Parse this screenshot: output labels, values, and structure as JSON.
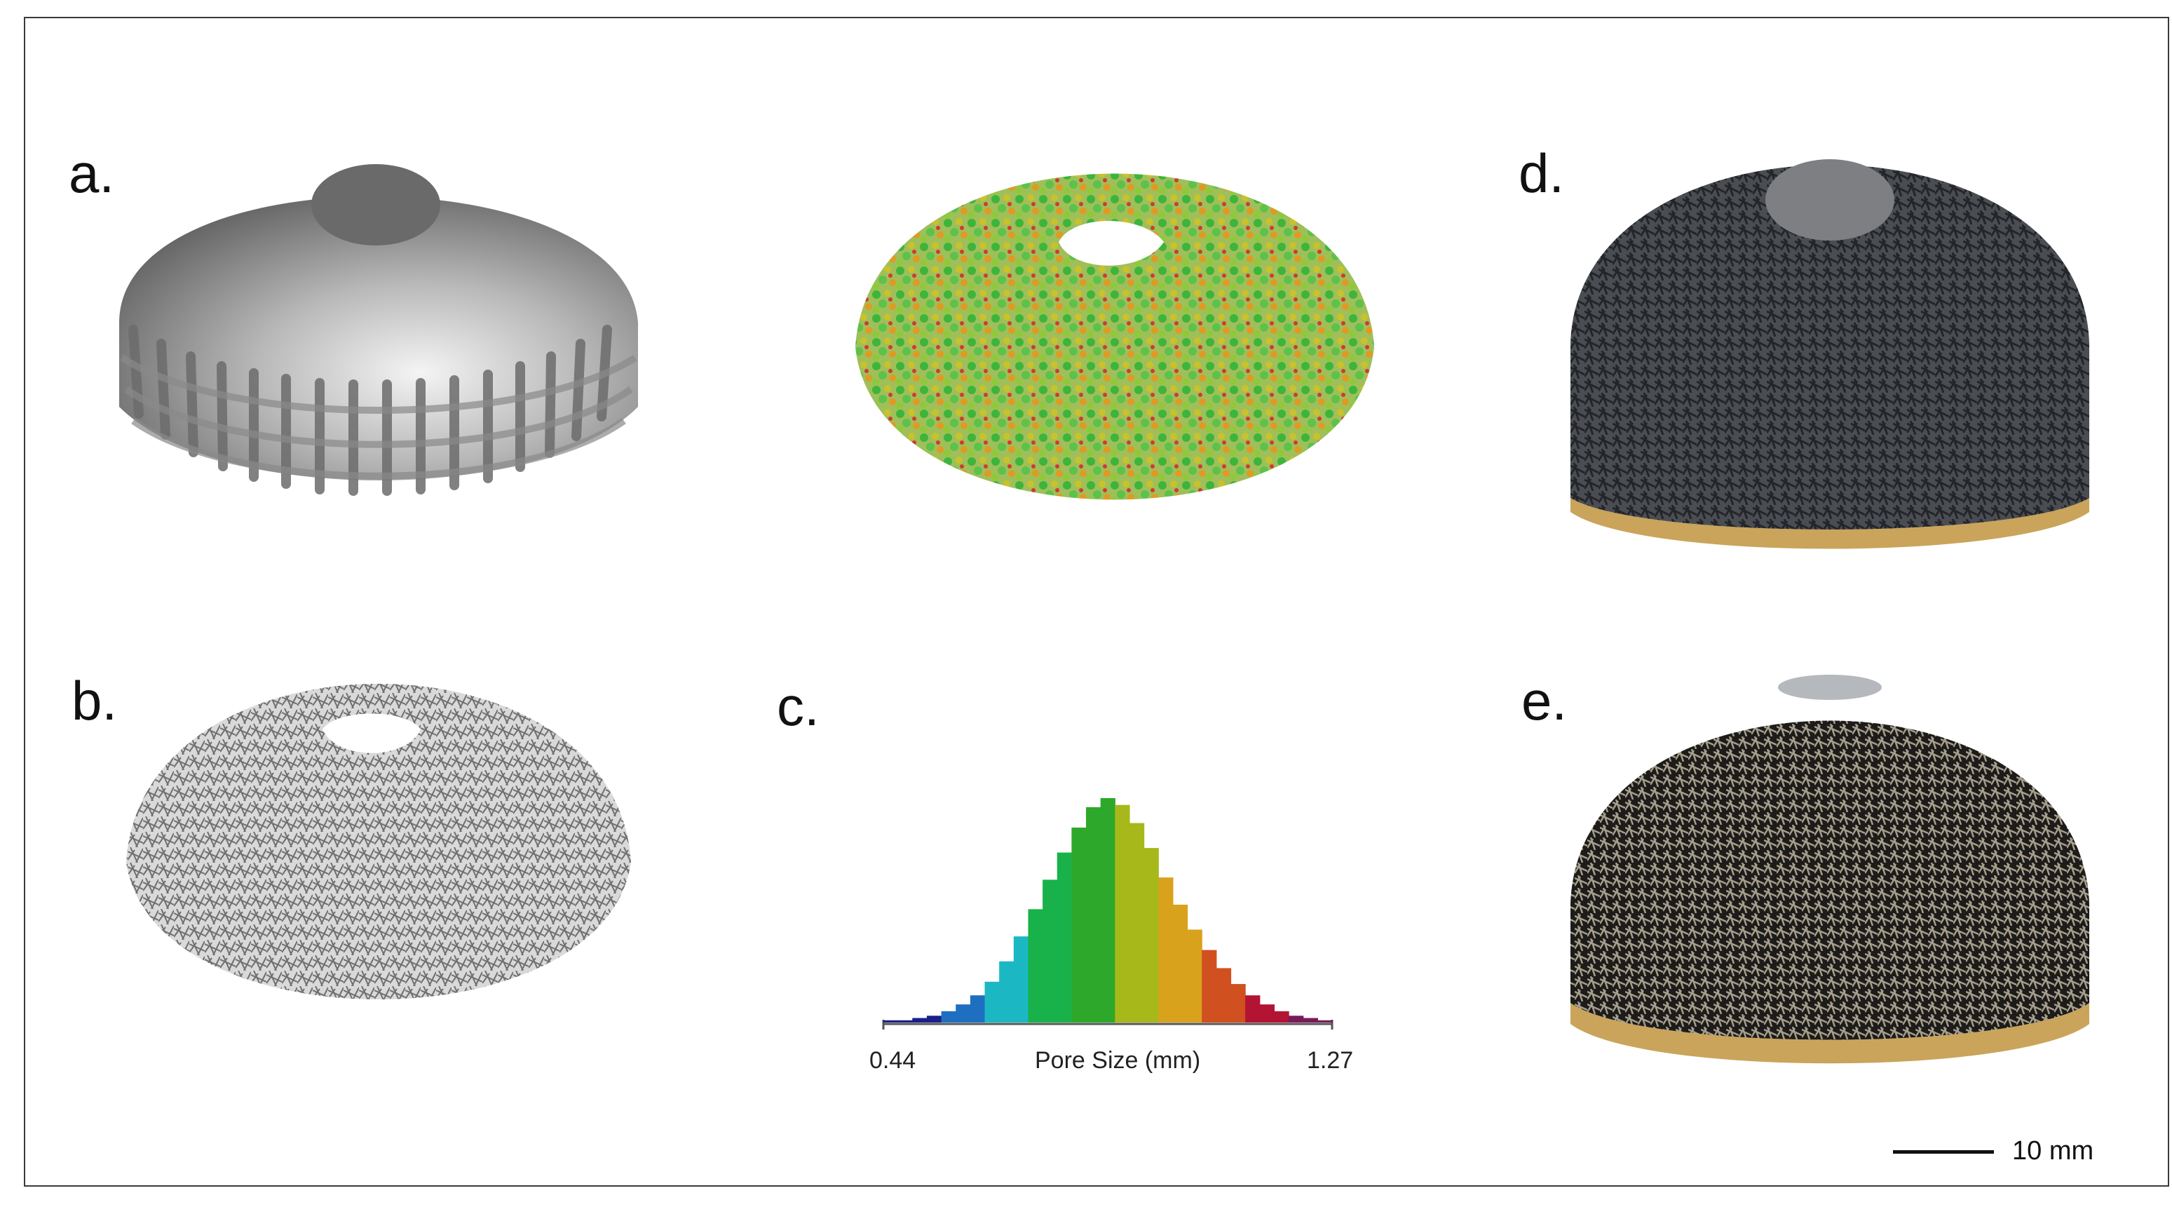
{
  "labels": {
    "a": "a.",
    "b": "b.",
    "c": "c.",
    "d": "d.",
    "e": "e."
  },
  "scalebar": {
    "text": "10 mm"
  },
  "chart_data": {
    "type": "bar",
    "title": "",
    "xlabel": "Pore Size (mm)",
    "ylabel": "",
    "x_ticks": [
      "0.44",
      "1.27"
    ],
    "xlim": [
      0.44,
      1.27
    ],
    "colormap": [
      "#1b1f8a",
      "#1f6fc0",
      "#1bb8c4",
      "#19b24a",
      "#2ea82a",
      "#a7b81a",
      "#d9a21c",
      "#d1501f",
      "#b41434",
      "#7a1a5a"
    ],
    "x": [
      0.44,
      0.47,
      0.5,
      0.52,
      0.55,
      0.58,
      0.61,
      0.63,
      0.66,
      0.69,
      0.72,
      0.74,
      0.77,
      0.8,
      0.83,
      0.86,
      0.88,
      0.91,
      0.94,
      0.97,
      0.99,
      1.02,
      1.05,
      1.08,
      1.1,
      1.13,
      1.16,
      1.19,
      1.21,
      1.24,
      1.27
    ],
    "values": [
      1,
      1,
      2,
      3,
      5,
      8,
      12,
      18,
      27,
      38,
      50,
      63,
      75,
      86,
      95,
      99,
      96,
      88,
      77,
      64,
      52,
      41,
      32,
      24,
      17,
      12,
      8,
      5,
      3,
      2,
      1
    ]
  }
}
